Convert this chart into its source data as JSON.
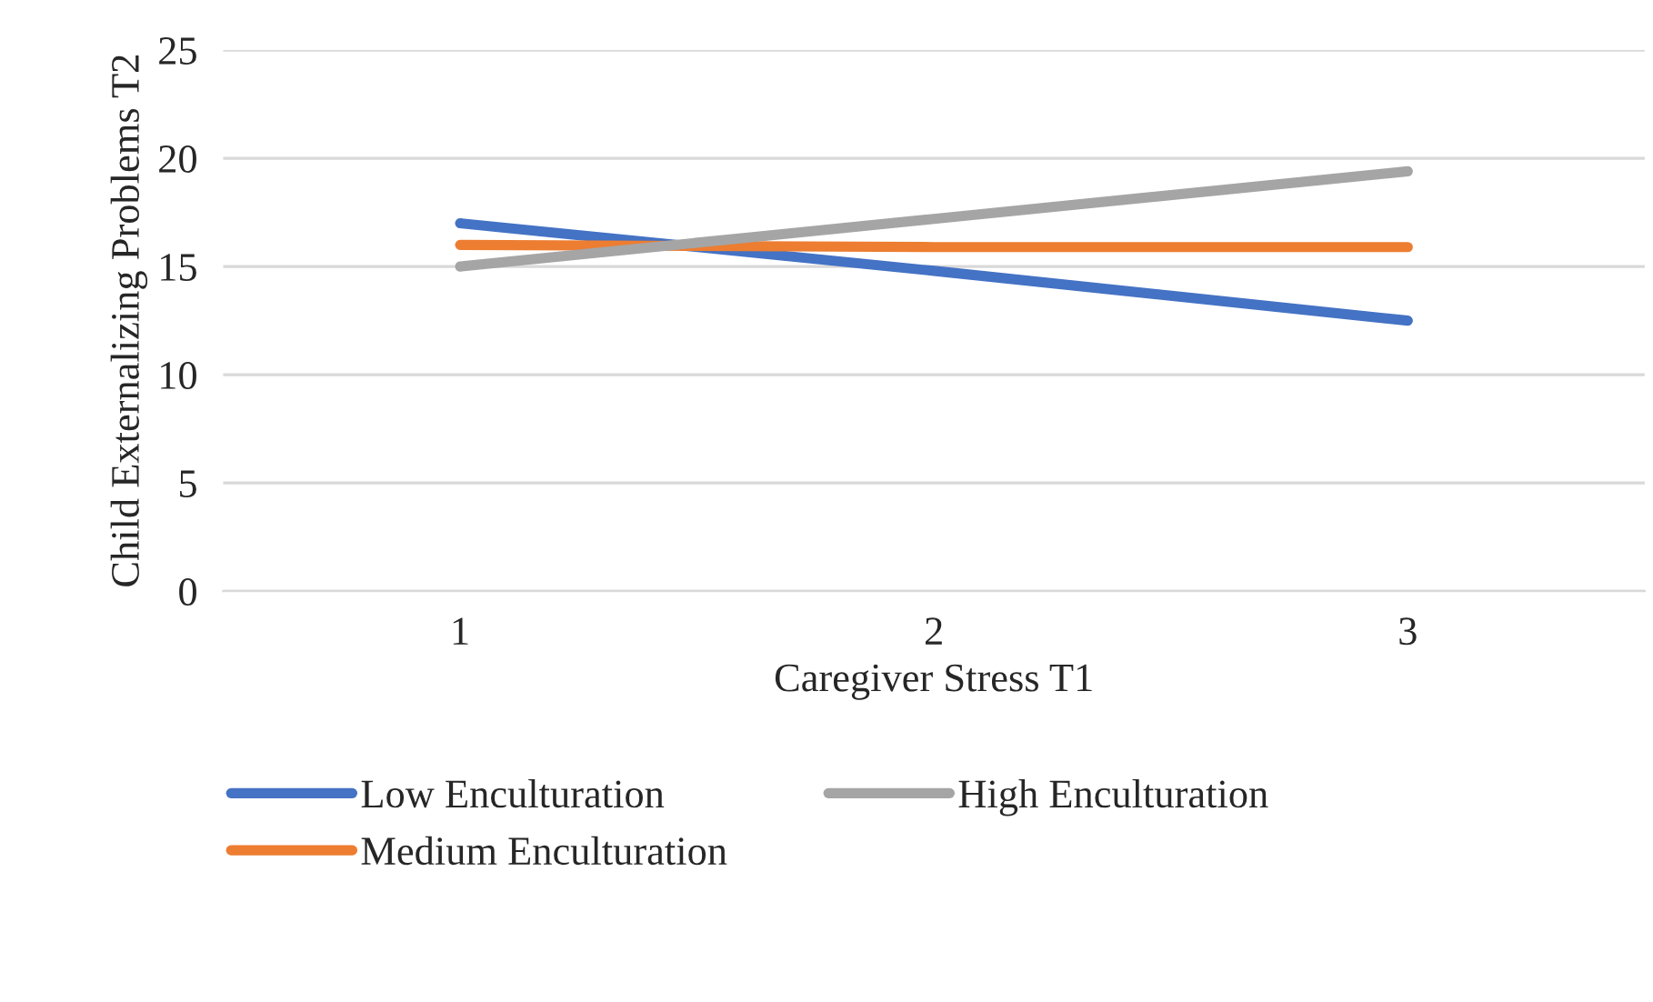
{
  "chart_data": {
    "type": "line",
    "xlabel": "Caregiver Stress T1",
    "ylabel": "Child Externalizing Problems T2",
    "categories": [
      "1",
      "2",
      "3"
    ],
    "series": [
      {
        "name": "Low Enculturation",
        "color": "#4472c4",
        "values": [
          17.0,
          14.8,
          12.5
        ]
      },
      {
        "name": "Medium Enculturation",
        "color": "#ed7d31",
        "values": [
          16.0,
          15.9,
          15.9
        ]
      },
      {
        "name": "High Enculturation",
        "color": "#a5a5a5",
        "values": [
          15.0,
          17.2,
          19.4
        ]
      }
    ],
    "ylim": [
      0,
      25
    ],
    "yticks": [
      0,
      5,
      10,
      15,
      20,
      25
    ],
    "grid": "y",
    "legend": "bottom",
    "marker": "none",
    "line_style": "solid"
  }
}
